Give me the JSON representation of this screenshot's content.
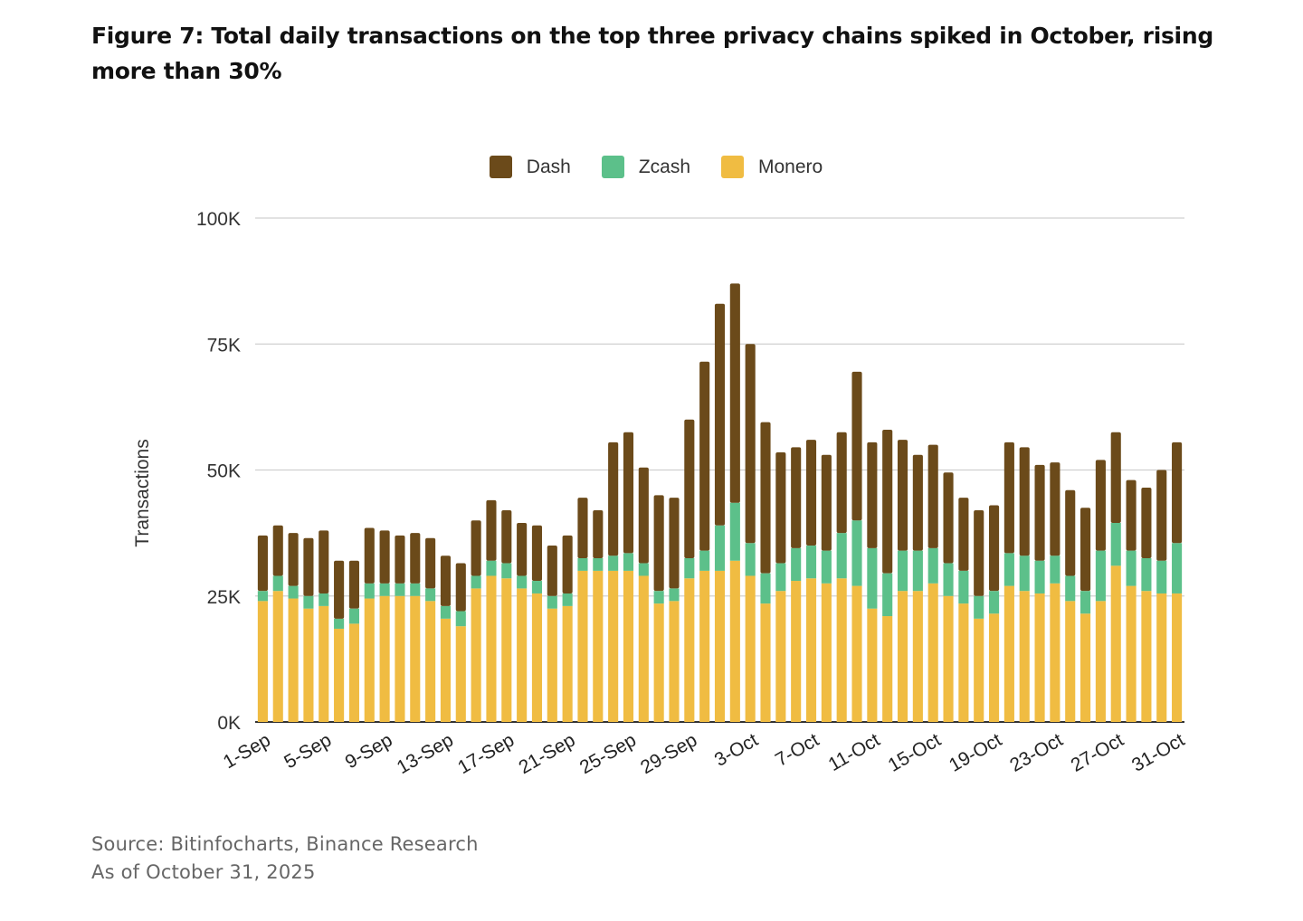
{
  "title": "Figure 7: Total daily transactions on the top three privacy chains spiked in October, rising more than 30%",
  "source": {
    "line1": "Source: Bitinfocharts, Binance Research",
    "line2": "As of October 31, 2025"
  },
  "chart_data": {
    "type": "bar",
    "stacked": true,
    "title": "Figure 7: Total daily transactions on the top three privacy chains spiked in October, rising more than 30%",
    "xlabel": "",
    "ylabel": "Transactions",
    "ylim": [
      0,
      100000
    ],
    "y_ticks": [
      0,
      25000,
      50000,
      75000,
      100000
    ],
    "y_tick_labels": [
      "0K",
      "25K",
      "50K",
      "75K",
      "100K"
    ],
    "grid": true,
    "legend_position": "top-center",
    "categories": [
      "1-Sep",
      "2-Sep",
      "3-Sep",
      "4-Sep",
      "5-Sep",
      "6-Sep",
      "7-Sep",
      "8-Sep",
      "9-Sep",
      "10-Sep",
      "11-Sep",
      "12-Sep",
      "13-Sep",
      "14-Sep",
      "15-Sep",
      "16-Sep",
      "17-Sep",
      "18-Sep",
      "19-Sep",
      "20-Sep",
      "21-Sep",
      "22-Sep",
      "23-Sep",
      "24-Sep",
      "25-Sep",
      "26-Sep",
      "27-Sep",
      "28-Sep",
      "29-Sep",
      "30-Sep",
      "1-Oct",
      "2-Oct",
      "3-Oct",
      "4-Oct",
      "5-Oct",
      "6-Oct",
      "7-Oct",
      "8-Oct",
      "9-Oct",
      "10-Oct",
      "11-Oct",
      "12-Oct",
      "13-Oct",
      "14-Oct",
      "15-Oct",
      "16-Oct",
      "17-Oct",
      "18-Oct",
      "19-Oct",
      "20-Oct",
      "21-Oct",
      "22-Oct",
      "23-Oct",
      "24-Oct",
      "25-Oct",
      "26-Oct",
      "27-Oct",
      "28-Oct",
      "29-Oct",
      "30-Oct",
      "31-Oct"
    ],
    "x_tick_labels": [
      "1-Sep",
      "5-Sep",
      "9-Sep",
      "13-Sep",
      "17-Sep",
      "21-Sep",
      "25-Sep",
      "29-Sep",
      "3-Oct",
      "7-Oct",
      "11-Oct",
      "15-Oct",
      "19-Oct",
      "23-Oct",
      "27-Oct",
      "31-Oct"
    ],
    "series": [
      {
        "name": "Monero",
        "color": "#F0BC42",
        "values": [
          24000,
          26000,
          24500,
          22500,
          23000,
          18500,
          19500,
          24500,
          25000,
          25000,
          25000,
          24000,
          20500,
          19000,
          26500,
          29000,
          28500,
          26500,
          25500,
          22500,
          23000,
          30000,
          30000,
          30000,
          30000,
          29000,
          23500,
          24000,
          28500,
          30000,
          30000,
          32000,
          29000,
          23500,
          26000,
          28000,
          28500,
          27500,
          28500,
          27000,
          22500,
          21000,
          26000,
          26000,
          27500,
          25000,
          23500,
          20500,
          21500,
          27000,
          26000,
          25500,
          27500,
          24000,
          21500,
          24000,
          31000,
          27000,
          26000,
          25500,
          25500
        ]
      },
      {
        "name": "Zcash",
        "color": "#5CC08A",
        "values": [
          2000,
          3000,
          2500,
          2500,
          2500,
          2000,
          3000,
          3000,
          2500,
          2500,
          2500,
          2500,
          2500,
          3000,
          2500,
          3000,
          3000,
          2500,
          2500,
          2500,
          2500,
          2500,
          2500,
          3000,
          3500,
          2500,
          2500,
          2500,
          4000,
          4000,
          9000,
          11500,
          6500,
          6000,
          5500,
          6500,
          6500,
          6500,
          9000,
          13000,
          12000,
          8500,
          8000,
          8000,
          7000,
          6500,
          6500,
          4500,
          4500,
          6500,
          7000,
          6500,
          5500,
          5000,
          4500,
          10000,
          8500,
          7000,
          6500,
          6500,
          10000
        ]
      },
      {
        "name": "Dash",
        "color": "#6B4A1A",
        "values": [
          11000,
          10000,
          10500,
          11500,
          12500,
          11500,
          9500,
          11000,
          10500,
          9500,
          10000,
          10000,
          10000,
          9500,
          11000,
          12000,
          10500,
          10500,
          11000,
          10000,
          11500,
          12000,
          9500,
          22500,
          24000,
          19000,
          19000,
          18000,
          27500,
          37500,
          44000,
          43500,
          39500,
          30000,
          22000,
          20000,
          21000,
          19000,
          20000,
          29500,
          21000,
          28500,
          22000,
          19000,
          20500,
          18000,
          14500,
          17000,
          17000,
          22000,
          21500,
          19000,
          18500,
          17000,
          16500,
          18000,
          18000,
          14000,
          14000,
          18000,
          20000
        ]
      }
    ]
  }
}
